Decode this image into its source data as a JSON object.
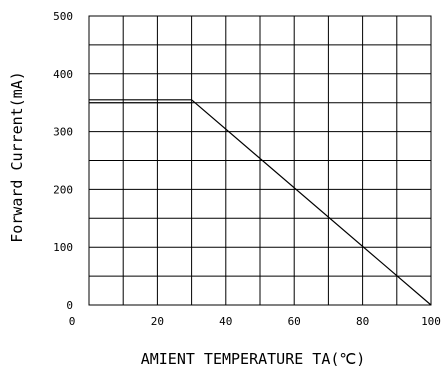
{
  "chart_data": {
    "type": "line",
    "title": "",
    "xlabel": "AMIENT TEMPERATURE TA(℃)",
    "ylabel": "Forward Current(mA)",
    "xlim": [
      0,
      100
    ],
    "ylim": [
      0,
      500
    ],
    "x_ticks": [
      0,
      20,
      40,
      60,
      80,
      100
    ],
    "x_tick_labels": [
      "0",
      "20",
      "40",
      "60",
      "80",
      "100"
    ],
    "y_ticks": [
      0,
      100,
      200,
      300,
      400,
      500
    ],
    "y_tick_labels": [
      "0",
      "100",
      "200",
      "300",
      "400",
      "500"
    ],
    "grid": true,
    "grid_x_step": 10,
    "grid_y_step": 50,
    "legend": "none",
    "series": [
      {
        "x": [
          0,
          30,
          100
        ],
        "y": [
          355,
          355,
          0
        ]
      }
    ],
    "colors": {
      "line": "#000000",
      "grid": "#000000"
    }
  }
}
